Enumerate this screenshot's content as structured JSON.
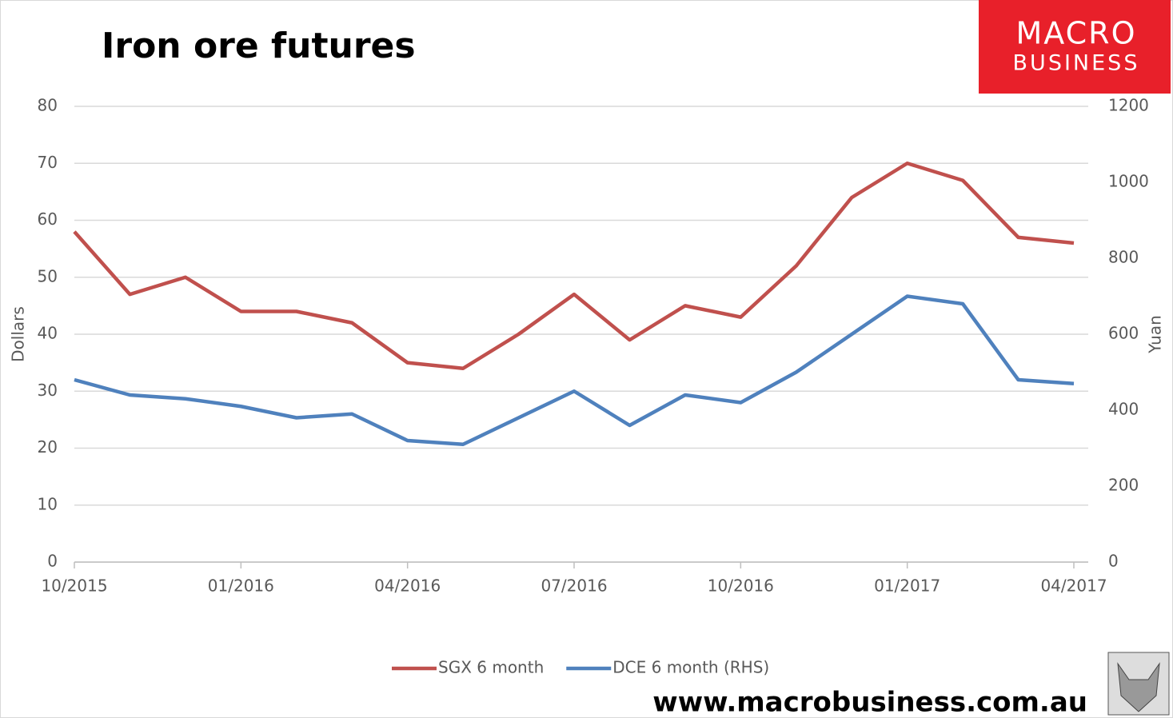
{
  "chart_data": {
    "type": "line",
    "title": "Iron ore futures",
    "y_label": "Dollars",
    "y2_label": "Yuan",
    "categories": [
      "10/2015",
      null,
      null,
      "01/2016",
      null,
      null,
      "04/2016",
      null,
      null,
      "07/2016",
      null,
      null,
      "10/2016",
      null,
      null,
      "01/2017",
      null,
      null,
      "04/2017"
    ],
    "series": [
      {
        "name": "SGX 6 month",
        "color": "#c0504d",
        "values": [
          58,
          47,
          50,
          44,
          44,
          42,
          35,
          34,
          40,
          47,
          39,
          45,
          43,
          52,
          64,
          70,
          67,
          57,
          56
        ]
      },
      {
        "name": "DCE 6 month (RHS)",
        "color": "#4f81bd",
        "axis": "y2",
        "values": [
          480,
          440,
          430,
          410,
          380,
          390,
          320,
          310,
          380,
          450,
          360,
          440,
          420,
          500,
          600,
          700,
          680,
          480,
          470
        ]
      }
    ],
    "ylim": [
      0,
      80
    ],
    "yticks": [
      0,
      10,
      20,
      30,
      40,
      50,
      60,
      70,
      80
    ],
    "y2lim": [
      0,
      1200
    ],
    "y2ticks": [
      0,
      200,
      400,
      600,
      800,
      1000,
      1200
    ],
    "grid": true,
    "legend": "bottom"
  },
  "logo": {
    "line1": "MACRO",
    "line2": "BUSINESS"
  },
  "footer": "www.macrobusiness.com.au"
}
